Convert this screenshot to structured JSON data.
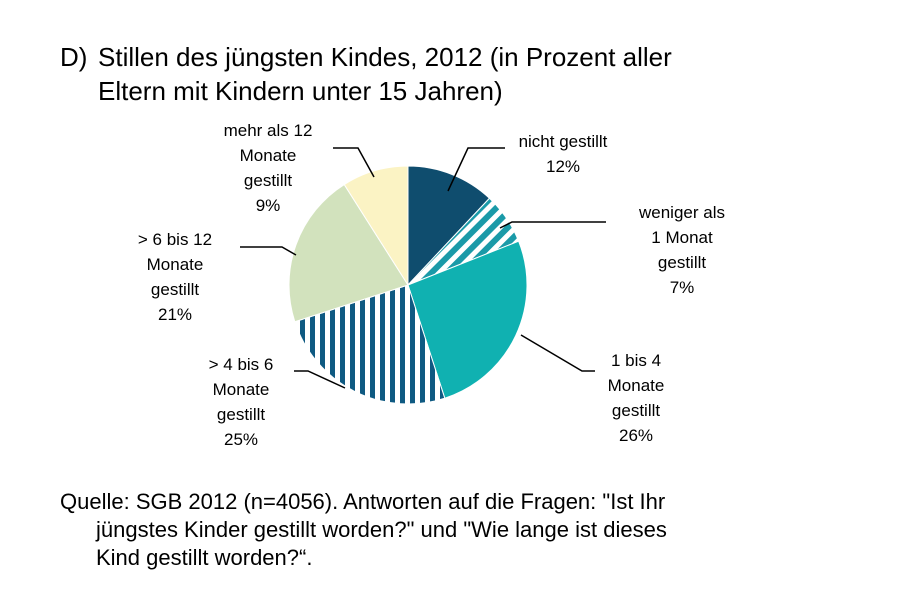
{
  "title": {
    "prefix": "D)",
    "line1": "Stillen des jüngsten Kindes, 2012 (in Prozent aller",
    "line2": "Eltern mit Kindern unter 15 Jahren)"
  },
  "source": {
    "line1": "Quelle: SGB 2012 (n=4056). Antworten auf die Fragen: \"Ist Ihr",
    "line2": "jüngstes Kinder gestillt worden?\" und \"Wie lange ist dieses",
    "line3": "Kind gestillt worden?“."
  },
  "chart_data": {
    "type": "pie",
    "unit": "%",
    "slices": [
      {
        "label_lines": [
          "nicht gestillt",
          "12%"
        ],
        "value": 12,
        "color": "#0f4d6e",
        "pattern": "solid"
      },
      {
        "label_lines": [
          "weniger als",
          "1 Monat",
          "gestillt",
          "7%"
        ],
        "value": 7,
        "color": "#1a9aa8",
        "pattern": "diagonal-stripes"
      },
      {
        "label_lines": [
          "1 bis 4",
          "Monate",
          "gestillt",
          "26%"
        ],
        "value": 26,
        "color": "#10b1b1",
        "pattern": "solid"
      },
      {
        "label_lines": [
          "> 4 bis 6",
          "Monate",
          "gestillt",
          "25%"
        ],
        "value": 25,
        "color": "#0f5a82",
        "pattern": "vertical-stripes"
      },
      {
        "label_lines": [
          "> 6 bis 12",
          "Monate",
          "gestillt",
          "21%"
        ],
        "value": 21,
        "color": "#d2e2bd",
        "pattern": "solid"
      },
      {
        "label_lines": [
          "mehr als 12",
          "Monate",
          "gestillt",
          "9%"
        ],
        "value": 9,
        "color": "#fbf3c4",
        "pattern": "solid"
      }
    ]
  }
}
